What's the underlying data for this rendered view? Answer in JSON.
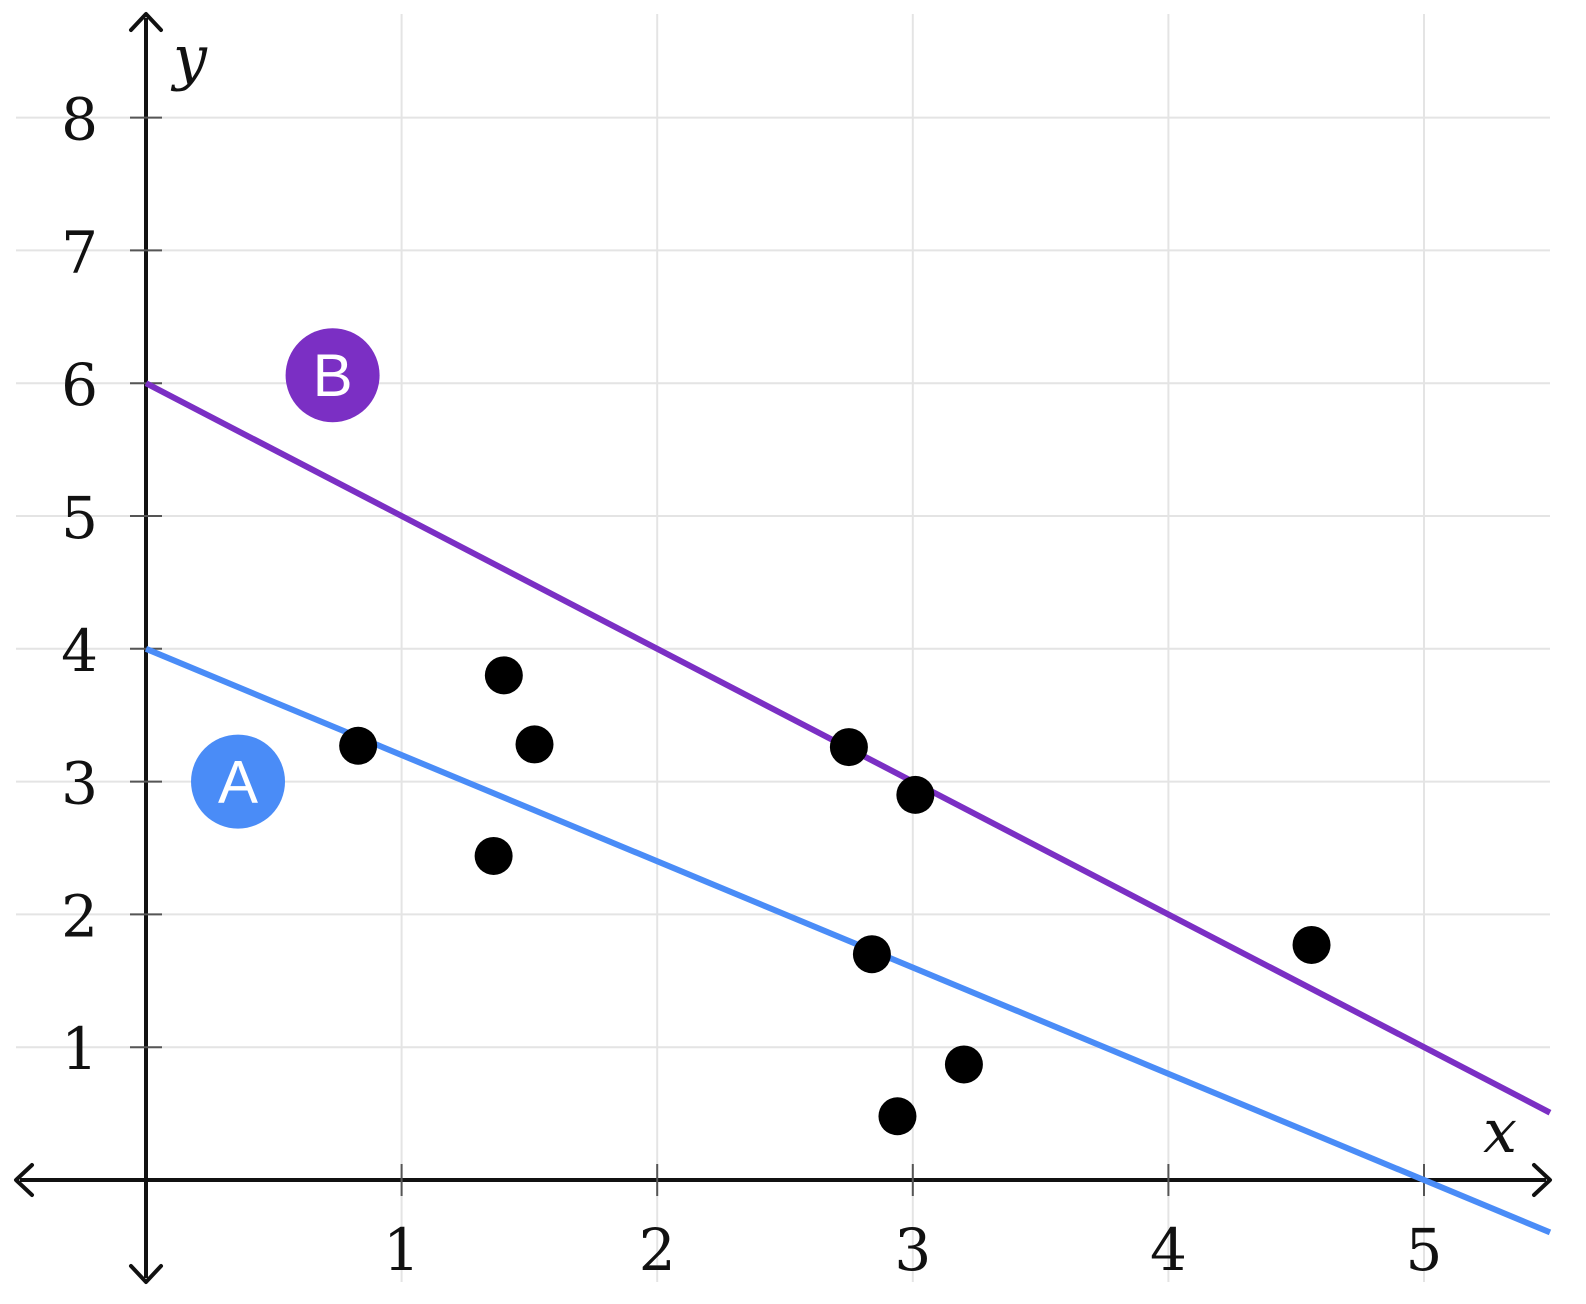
{
  "chart_data": {
    "type": "scatter",
    "title": "",
    "xlabel": "x",
    "ylabel": "y",
    "xlim": [
      -0.5,
      5.5
    ],
    "ylim": [
      -0.8,
      8.8
    ],
    "x_ticks": [
      "1",
      "2",
      "3",
      "4",
      "5"
    ],
    "y_ticks": [
      "1",
      "2",
      "3",
      "4",
      "5",
      "6",
      "7",
      "8"
    ],
    "grid": true,
    "points": [
      {
        "x": 0.83,
        "y": 3.27
      },
      {
        "x": 1.36,
        "y": 2.44
      },
      {
        "x": 1.4,
        "y": 3.8
      },
      {
        "x": 1.52,
        "y": 3.28
      },
      {
        "x": 2.75,
        "y": 3.26
      },
      {
        "x": 2.84,
        "y": 1.7
      },
      {
        "x": 2.94,
        "y": 0.48
      },
      {
        "x": 3.01,
        "y": 2.9
      },
      {
        "x": 3.2,
        "y": 0.87
      },
      {
        "x": 4.56,
        "y": 1.77
      }
    ],
    "lines": [
      {
        "name": "A",
        "intercept": 4,
        "slope": -0.8,
        "color": "#4a8cf7"
      },
      {
        "name": "B",
        "intercept": 6,
        "slope": -1,
        "color": "#7b2fc4"
      }
    ],
    "badges": [
      {
        "label": "A",
        "x": 0.36,
        "y": 3.0,
        "color": "#4a8cf7"
      },
      {
        "label": "B",
        "x": 0.73,
        "y": 6.06,
        "color": "#7b2fc4"
      }
    ]
  }
}
